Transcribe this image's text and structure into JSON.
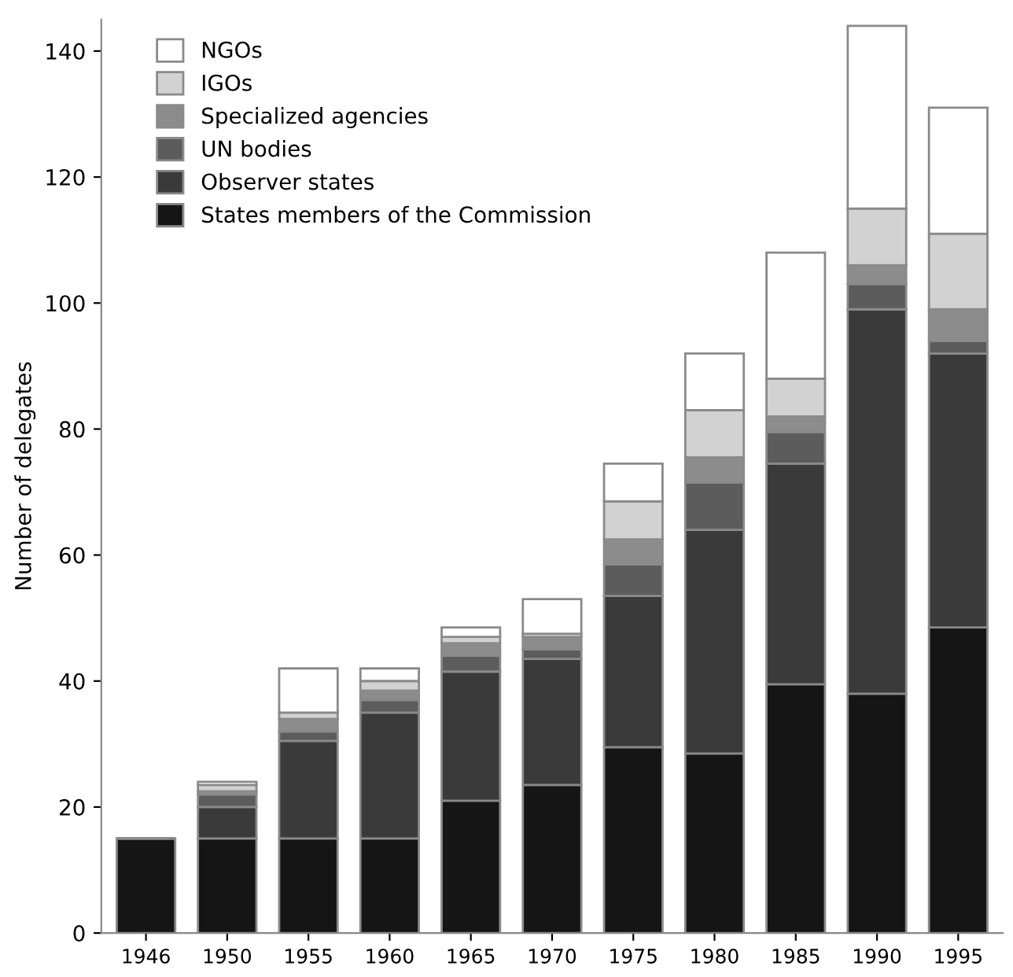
{
  "chart_data": {
    "type": "bar",
    "stacked": true,
    "ylabel": "Number of delegates",
    "categories": [
      "1946",
      "1950",
      "1955",
      "1960",
      "1965",
      "1970",
      "1975",
      "1980",
      "1985",
      "1990",
      "1995"
    ],
    "series": [
      {
        "name": "States members of the Commission",
        "color": "#151515",
        "values": [
          15,
          15,
          15,
          15,
          21,
          23.5,
          29.5,
          28.5,
          39.5,
          38,
          48.5
        ]
      },
      {
        "name": "Observer states",
        "color": "#3a3a3a",
        "values": [
          0,
          5,
          15.5,
          20,
          20.5,
          20,
          24,
          35.5,
          35,
          61,
          43.5
        ]
      },
      {
        "name": "UN bodies",
        "color": "#5c5c5c",
        "values": [
          0,
          2,
          1.5,
          2,
          2.5,
          1.5,
          5,
          7.5,
          5,
          4,
          2
        ]
      },
      {
        "name": "Specialized agencies",
        "color": "#8c8c8c",
        "values": [
          0,
          0.5,
          2,
          1.5,
          2,
          2,
          4,
          4,
          2.5,
          3,
          5
        ]
      },
      {
        "name": "IGOs",
        "color": "#d2d2d2",
        "values": [
          0,
          1,
          1,
          1.5,
          1,
          0.5,
          6,
          7.5,
          6,
          9,
          12
        ]
      },
      {
        "name": "NGOs",
        "color": "#ffffff",
        "values": [
          0,
          0.5,
          7,
          2,
          1.5,
          5.5,
          6,
          9,
          20,
          29,
          20
        ]
      }
    ],
    "ylim": [
      0,
      145
    ],
    "yticks": [
      0,
      20,
      40,
      60,
      80,
      100,
      120,
      140
    ],
    "grid": false,
    "legend": "top left"
  }
}
